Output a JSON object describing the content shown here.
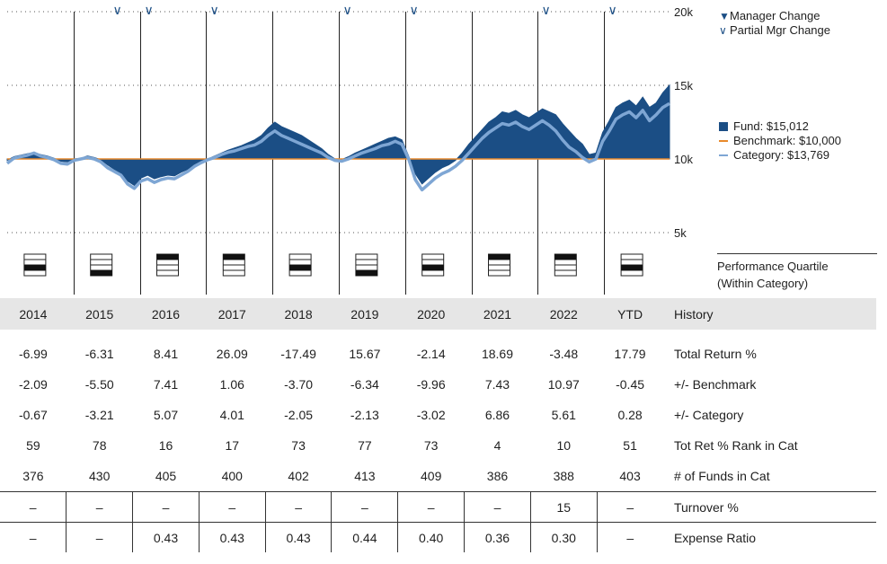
{
  "years": [
    "2014",
    "2015",
    "2016",
    "2017",
    "2018",
    "2019",
    "2020",
    "2021",
    "2022",
    "YTD"
  ],
  "y_axis": {
    "ticks": [
      "20k",
      "15k",
      "10k",
      "5k"
    ]
  },
  "legend": {
    "manager_change": "Manager Change",
    "partial_mgr_change": "Partial Mgr Change",
    "fund": "Fund: $15,012",
    "benchmark": "Benchmark: $10,000",
    "category": "Category: $13,769"
  },
  "colors": {
    "fund": "#1b4e85",
    "benchmark": "#e8892b",
    "category": "#7ea6d4"
  },
  "quartile_heading": [
    "Performance Quartile",
    "(Within Category)"
  ],
  "quartiles": [
    3,
    4,
    1,
    1,
    3,
    4,
    3,
    1,
    1,
    3
  ],
  "history_label": "History",
  "rows": [
    {
      "label": "Total Return %",
      "values": [
        "-6.99",
        "-6.31",
        "8.41",
        "26.09",
        "-17.49",
        "15.67",
        "-2.14",
        "18.69",
        "-3.48",
        "17.79"
      ]
    },
    {
      "label": "+/- Benchmark",
      "values": [
        "-2.09",
        "-5.50",
        "7.41",
        "1.06",
        "-3.70",
        "-6.34",
        "-9.96",
        "7.43",
        "10.97",
        "-0.45"
      ]
    },
    {
      "label": "+/- Category",
      "values": [
        "-0.67",
        "-3.21",
        "5.07",
        "4.01",
        "-2.05",
        "-2.13",
        "-3.02",
        "6.86",
        "5.61",
        "0.28"
      ]
    },
    {
      "label": "Tot Ret % Rank in Cat",
      "values": [
        "59",
        "78",
        "16",
        "17",
        "73",
        "77",
        "73",
        "4",
        "10",
        "51"
      ]
    },
    {
      "label": "# of Funds in Cat",
      "values": [
        "376",
        "430",
        "405",
        "400",
        "402",
        "413",
        "409",
        "386",
        "388",
        "403"
      ]
    }
  ],
  "line_rows": [
    {
      "label": "Turnover %",
      "values": [
        "–",
        "–",
        "–",
        "–",
        "–",
        "–",
        "–",
        "–",
        "15",
        "–"
      ]
    },
    {
      "label": "Expense Ratio",
      "values": [
        "–",
        "–",
        "0.43",
        "0.43",
        "0.43",
        "0.44",
        "0.40",
        "0.36",
        "0.30",
        "–"
      ]
    }
  ],
  "chart_data": {
    "type": "area",
    "y_unit": "growth of $10,000",
    "ylim": [
      5000,
      20000
    ],
    "y_ticks": [
      5000,
      10000,
      15000,
      20000
    ],
    "benchmark_value": 10000,
    "partial_manager_change_years": [
      "2015",
      "2016",
      "2017",
      "2019",
      "2020",
      "2022",
      "YTD"
    ],
    "series": [
      {
        "name": "Fund",
        "values": [
          9900,
          10150,
          10250,
          10350,
          10450,
          10300,
          10200,
          10050,
          9850,
          9800,
          10000,
          10050,
          10200,
          10100,
          9950,
          9600,
          9300,
          9000,
          8500,
          8200,
          8700,
          8900,
          8650,
          8800,
          8900,
          8850,
          9100,
          9300,
          9600,
          9850,
          10000,
          10200,
          10400,
          10600,
          10750,
          10900,
          11100,
          11300,
          11600,
          12100,
          12500,
          12200,
          12000,
          11800,
          11600,
          11300,
          11000,
          10700,
          10300,
          10000,
          9950,
          10150,
          10400,
          10600,
          10800,
          11000,
          11200,
          11400,
          11500,
          11300,
          10200,
          9000,
          8300,
          8700,
          9100,
          9400,
          9600,
          9900,
          10400,
          11000,
          11500,
          12000,
          12500,
          12800,
          13200,
          13100,
          13300,
          13000,
          12800,
          13100,
          13400,
          13200,
          13000,
          12400,
          11900,
          11400,
          11000,
          10300,
          10400,
          11800,
          12600,
          13500,
          13800,
          14000,
          13600,
          14200,
          13500,
          13800,
          14500,
          15012
        ]
      },
      {
        "name": "Category",
        "values": [
          9700,
          10050,
          10150,
          10250,
          10400,
          10200,
          10100,
          9950,
          9700,
          9650,
          9900,
          10000,
          10100,
          10000,
          9800,
          9400,
          9150,
          8900,
          8300,
          8000,
          8500,
          8650,
          8400,
          8600,
          8700,
          8650,
          8900,
          9150,
          9500,
          9750,
          9950,
          10100,
          10300,
          10450,
          10550,
          10700,
          10850,
          10950,
          11200,
          11600,
          11900,
          11600,
          11400,
          11200,
          11000,
          10800,
          10600,
          10400,
          10100,
          9900,
          9850,
          10000,
          10200,
          10400,
          10550,
          10700,
          10900,
          11000,
          11200,
          11000,
          10000,
          8600,
          7900,
          8300,
          8700,
          9000,
          9200,
          9500,
          9900,
          10400,
          10900,
          11400,
          11800,
          12100,
          12400,
          12300,
          12500,
          12200,
          12000,
          12300,
          12600,
          12300,
          11900,
          11300,
          10800,
          10500,
          10100,
          9800,
          10000,
          11200,
          11900,
          12700,
          13000,
          13200,
          12800,
          13300,
          12600,
          13000,
          13500,
          13769
        ]
      }
    ]
  }
}
